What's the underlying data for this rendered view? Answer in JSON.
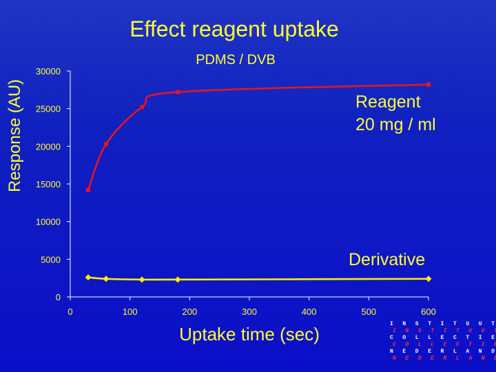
{
  "colors": {
    "text": "#ffff33",
    "axis": "#ffffff",
    "reagent": "#e8141e",
    "derivative": "#ffee00"
  },
  "logo": {
    "lines": [
      "I N S T I T U U T",
      "I N S T I T U U T",
      "C O L L E C T I E",
      "C O L L E C T I E",
      "N E D E R L A N D",
      "N E D E R L A N D"
    ]
  },
  "chart_data": {
    "type": "line",
    "title": "Effect reagent uptake",
    "subtitle": "PDMS / DVB",
    "xlabel": "Uptake time (sec)",
    "ylabel": "Response (AU)",
    "xlim": [
      0,
      600
    ],
    "ylim": [
      0,
      30000
    ],
    "xticks": [
      0,
      100,
      200,
      300,
      400,
      500,
      600
    ],
    "yticks": [
      0,
      5000,
      10000,
      15000,
      20000,
      25000,
      30000
    ],
    "grid": false,
    "series": [
      {
        "name": "Reagent",
        "label_lines": [
          "Reagent",
          "20 mg / ml"
        ],
        "color": "#e8141e",
        "marker": "square",
        "x": [
          30,
          60,
          120,
          180,
          600
        ],
        "y": [
          14200,
          20300,
          25200,
          27200,
          28200
        ]
      },
      {
        "name": "Derivative",
        "label_lines": [
          "Derivative"
        ],
        "color": "#ffee00",
        "marker": "diamond",
        "x": [
          30,
          60,
          120,
          180,
          600
        ],
        "y": [
          2600,
          2400,
          2300,
          2300,
          2400
        ]
      }
    ]
  }
}
